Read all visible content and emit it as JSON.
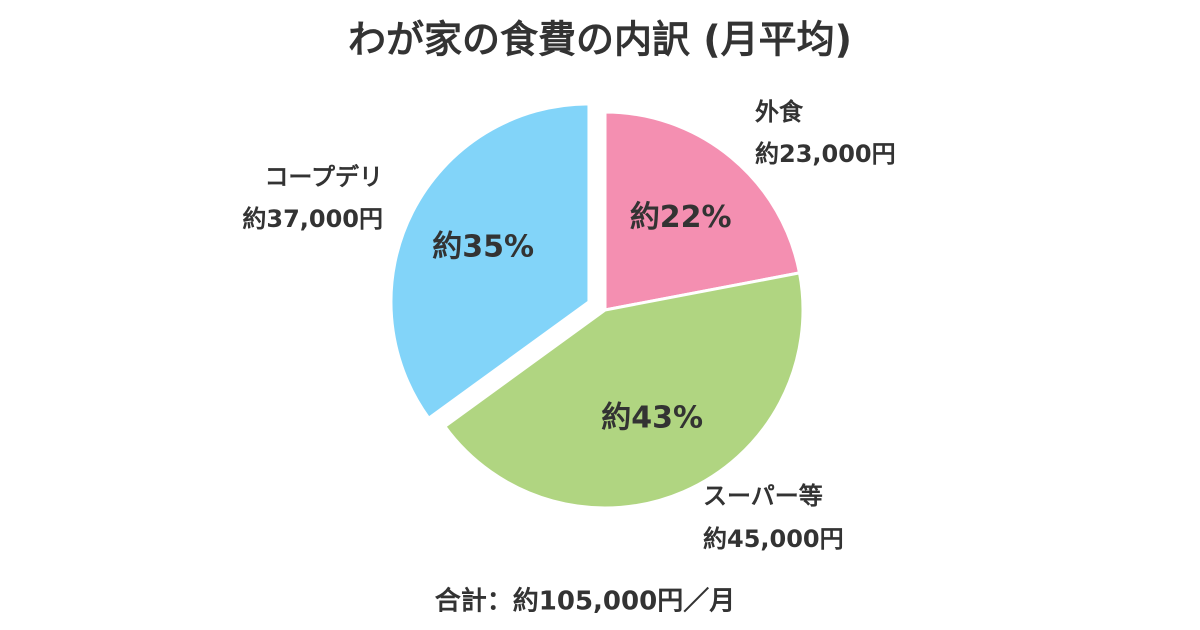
{
  "chart_data": {
    "type": "pie",
    "title": "わが家の食費の内訳 (月平均)",
    "categories": [
      "外食",
      "スーパー等",
      "コープデリ"
    ],
    "values": [
      22,
      43,
      35
    ],
    "value_labels": [
      "約22%",
      "約43%",
      "約35%"
    ],
    "amounts": [
      23000,
      45000,
      37000
    ],
    "amount_labels": [
      "約23,000円",
      "約45,000円",
      "約37,000円"
    ],
    "colors": [
      "#f48fb1",
      "#b0d581",
      "#82d4f9"
    ],
    "exploded": [
      false,
      false,
      true
    ],
    "total": 105000,
    "total_label": "合計：約105,000円／月"
  }
}
